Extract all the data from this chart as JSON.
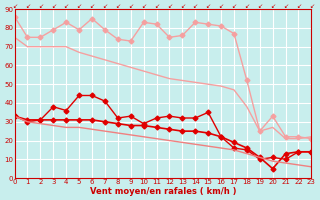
{
  "xlabel": "Vent moyen/en rafales ( km/h )",
  "ylabel": "",
  "background_color": "#c8eeed",
  "grid_color": "#ffffff",
  "xlim": [
    0,
    23
  ],
  "ylim": [
    0,
    90
  ],
  "yticks": [
    0,
    10,
    20,
    30,
    40,
    50,
    60,
    70,
    80,
    90
  ],
  "xticks": [
    0,
    1,
    2,
    3,
    4,
    5,
    6,
    7,
    8,
    9,
    10,
    11,
    12,
    13,
    14,
    15,
    16,
    17,
    18,
    19,
    20,
    21,
    22,
    23
  ],
  "x": [
    0,
    1,
    2,
    3,
    4,
    5,
    6,
    7,
    8,
    9,
    10,
    11,
    12,
    13,
    14,
    15,
    16,
    17,
    18,
    19,
    20,
    21,
    22,
    23
  ],
  "line1_y": [
    86,
    75,
    75,
    79,
    83,
    79,
    85,
    79,
    74,
    73,
    83,
    82,
    75,
    76,
    83,
    82,
    81,
    77,
    52,
    25,
    33,
    22,
    22,
    21
  ],
  "line2_y": [
    75,
    70,
    70,
    70,
    70,
    67,
    65,
    63,
    61,
    59,
    57,
    55,
    53,
    52,
    51,
    50,
    49,
    47,
    38,
    25,
    27,
    21,
    21,
    22
  ],
  "line3_y": [
    33,
    30,
    31,
    38,
    36,
    44,
    44,
    41,
    32,
    33,
    29,
    32,
    33,
    32,
    32,
    35,
    22,
    16,
    15,
    10,
    11,
    10,
    14,
    14
  ],
  "line4_y": [
    33,
    31,
    31,
    31,
    31,
    31,
    31,
    30,
    29,
    28,
    28,
    27,
    26,
    25,
    25,
    24,
    22,
    19,
    16,
    11,
    5,
    13,
    14,
    14
  ],
  "line5_y": [
    33,
    30,
    29,
    28,
    27,
    27,
    26,
    25,
    24,
    23,
    22,
    21,
    20,
    19,
    18,
    17,
    16,
    15,
    13,
    11,
    9,
    8,
    7,
    6
  ],
  "color_light": "#f5a0a0",
  "color_medium": "#f08080",
  "color_dark": "#e00000",
  "color_darkest": "#c00000"
}
